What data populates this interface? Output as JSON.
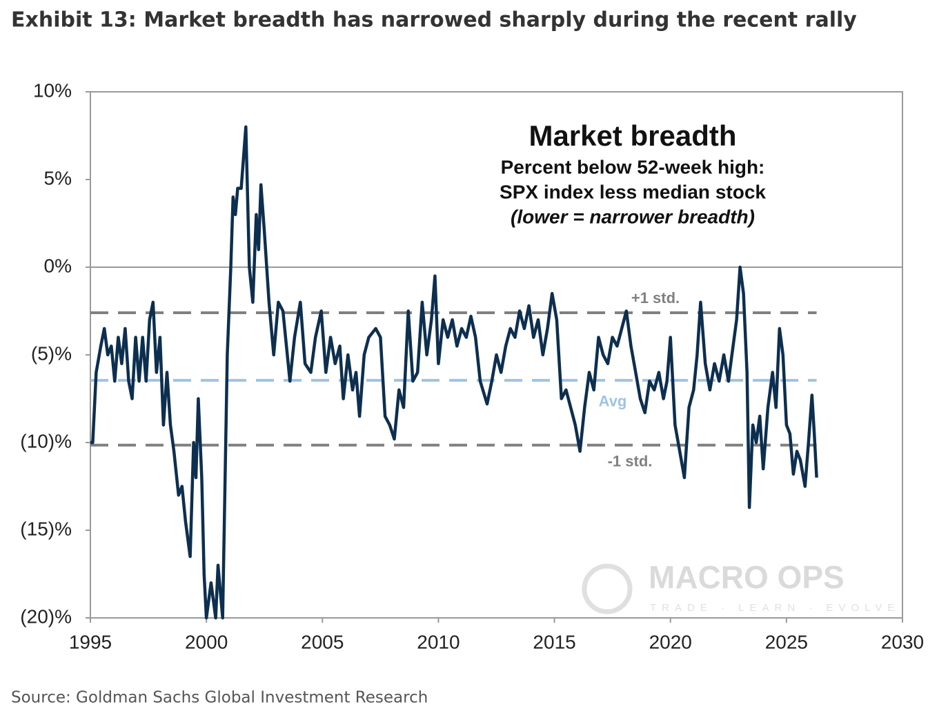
{
  "page_title": "Exhibit 13: Market breadth has narrowed sharply during the recent rally",
  "source": "Source: Goldman Sachs Global Investment Research",
  "chart_data": {
    "type": "line",
    "title": "Market breadth",
    "subtitle_lines": [
      "Percent below 52-week high:",
      "SPX index less median stock",
      "(lower = narrower breadth)"
    ],
    "xlim": [
      1995,
      2030
    ],
    "xticks": [
      1995,
      2000,
      2005,
      2010,
      2015,
      2020,
      2025,
      2030
    ],
    "ylim": [
      -20,
      10
    ],
    "yticks": [
      {
        "value": -20,
        "label": "(20)%"
      },
      {
        "value": -15,
        "label": "(15)%"
      },
      {
        "value": -10,
        "label": "(10)%"
      },
      {
        "value": -5,
        "label": "(5)%"
      },
      {
        "value": 0,
        "label": "0%"
      },
      {
        "value": 5,
        "label": "5%"
      },
      {
        "value": 10,
        "label": "10%"
      }
    ],
    "zero_line": true,
    "series": [
      {
        "name": "Market breadth",
        "color": "#0d2f4f",
        "x": [
          1995.0,
          1995.1,
          1995.25,
          1995.45,
          1995.6,
          1995.75,
          1995.9,
          1996.05,
          1996.2,
          1996.35,
          1996.5,
          1996.65,
          1996.8,
          1996.95,
          1997.1,
          1997.25,
          1997.4,
          1997.55,
          1997.7,
          1997.85,
          1998.0,
          1998.15,
          1998.3,
          1998.45,
          1998.6,
          1998.8,
          1998.95,
          1999.1,
          1999.3,
          1999.45,
          1999.55,
          1999.65,
          1999.8,
          1999.9,
          2000.0,
          2000.2,
          2000.4,
          2000.5,
          2000.7,
          2000.9,
          2001.05,
          2001.15,
          2001.25,
          2001.35,
          2001.5,
          2001.7,
          2001.85,
          2002.0,
          2002.15,
          2002.25,
          2002.35,
          2002.5,
          2002.7,
          2002.9,
          2003.1,
          2003.3,
          2003.6,
          2003.8,
          2004.05,
          2004.25,
          2004.5,
          2004.7,
          2004.95,
          2005.15,
          2005.35,
          2005.55,
          2005.75,
          2005.9,
          2006.1,
          2006.3,
          2006.45,
          2006.6,
          2006.8,
          2007.0,
          2007.3,
          2007.5,
          2007.7,
          2007.9,
          2008.1,
          2008.3,
          2008.5,
          2008.7,
          2008.9,
          2009.1,
          2009.3,
          2009.5,
          2009.7,
          2009.85,
          2010.0,
          2010.2,
          2010.4,
          2010.6,
          2010.8,
          2011.0,
          2011.2,
          2011.4,
          2011.6,
          2011.8,
          2012.1,
          2012.3,
          2012.5,
          2012.7,
          2012.9,
          2013.1,
          2013.3,
          2013.5,
          2013.7,
          2013.9,
          2014.1,
          2014.3,
          2014.5,
          2014.7,
          2014.9,
          2015.1,
          2015.3,
          2015.5,
          2015.7,
          2015.9,
          2016.1,
          2016.3,
          2016.5,
          2016.7,
          2016.9,
          2017.1,
          2017.3,
          2017.5,
          2017.7,
          2017.9,
          2018.1,
          2018.3,
          2018.5,
          2018.7,
          2018.9,
          2019.1,
          2019.3,
          2019.5,
          2019.7,
          2019.85,
          2020.0,
          2020.2,
          2020.4,
          2020.6,
          2020.8,
          2021.0,
          2021.15,
          2021.3,
          2021.5,
          2021.7,
          2021.9,
          2022.1,
          2022.3,
          2022.5,
          2022.65,
          2022.85,
          2023.0,
          2023.15,
          2023.3,
          2023.4,
          2023.55,
          2023.7,
          2023.85,
          2024.0,
          2024.2,
          2024.4,
          2024.55,
          2024.7,
          2024.85,
          2025.0,
          2025.15,
          2025.3,
          2025.45,
          2025.6,
          2025.8,
          2025.95,
          2026.1,
          2026.2,
          2026.3
        ],
        "values": [
          -10,
          -10,
          -6,
          -4.5,
          -3.5,
          -5,
          -4.5,
          -6.5,
          -4,
          -5.5,
          -3.5,
          -6.5,
          -7.5,
          -4,
          -6.5,
          -4,
          -6.5,
          -3,
          -2,
          -6,
          -4,
          -9,
          -6,
          -9,
          -10.5,
          -13,
          -12.5,
          -14.5,
          -16.5,
          -10,
          -12,
          -7.5,
          -12,
          -17.5,
          -20,
          -18,
          -20,
          -17,
          -20,
          -5,
          0,
          4,
          3,
          4.5,
          4.5,
          8,
          0,
          -2,
          3,
          1,
          4.7,
          2,
          -2,
          -5,
          -2,
          -2.5,
          -6.5,
          -4,
          -2,
          -5.5,
          -6,
          -4,
          -2.5,
          -6,
          -4,
          -5.5,
          -4.5,
          -7.5,
          -5,
          -7,
          -6,
          -8.5,
          -5,
          -4,
          -3.5,
          -4,
          -8.5,
          -9,
          -9.8,
          -7,
          -8,
          -2.5,
          -6.5,
          -6,
          -2,
          -5,
          -3,
          -0.5,
          -5.5,
          -3,
          -4,
          -3,
          -4.5,
          -3.5,
          -4,
          -2.8,
          -4,
          -6.5,
          -7.8,
          -6.5,
          -5,
          -6,
          -4.5,
          -3.5,
          -4,
          -2.5,
          -3.5,
          -2.2,
          -4,
          -3,
          -5,
          -3.5,
          -1.5,
          -3,
          -7.5,
          -7,
          -8,
          -9,
          -10.5,
          -8,
          -6,
          -7,
          -4,
          -5,
          -5.5,
          -4,
          -4.5,
          -3.5,
          -2.5,
          -4.5,
          -6,
          -7.5,
          -8.3,
          -6.5,
          -7,
          -6,
          -7.5,
          -6.5,
          -4,
          -9,
          -10.5,
          -12,
          -8,
          -7,
          -5,
          -2,
          -5.5,
          -7,
          -5.5,
          -6.5,
          -5,
          -6.5,
          -5,
          -3,
          0,
          -1.5,
          -6,
          -13.7,
          -9,
          -10,
          -8.5,
          -11.5,
          -8,
          -6,
          -8,
          -3.5,
          -5,
          -9,
          -9.5,
          -11.8,
          -10.5,
          -11,
          -12.5,
          -10,
          -7.3,
          -9.5,
          -12
        ]
      }
    ],
    "reference_lines": [
      {
        "label": "+1 std.",
        "value": -2.6,
        "color": "#808080"
      },
      {
        "label": "Avg",
        "value": -6.45,
        "color": "#9dc3e6"
      },
      {
        "label": "-1 std.",
        "value": -10.15,
        "color": "#808080"
      }
    ],
    "watermark": {
      "text": "MACRO OPS",
      "tagline": "TRADE · LEARN · EVOLVE"
    }
  }
}
